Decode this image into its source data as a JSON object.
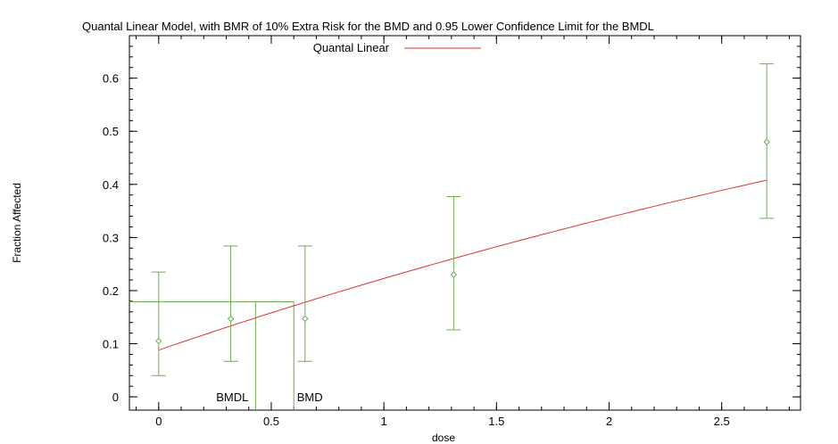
{
  "chart_data": {
    "type": "scatter",
    "title": "Quantal Linear Model, with BMR of 10% Extra Risk for the BMD and 0.95 Lower Confidence Limit for the BMDL",
    "xlabel": "dose",
    "ylabel": "Fraction Affected",
    "xlim": [
      -0.13,
      2.85
    ],
    "ylim": [
      -0.025,
      0.68
    ],
    "xticks": [
      0,
      0.5,
      1,
      1.5,
      2,
      2.5
    ],
    "yticks": [
      0,
      0.1,
      0.2,
      0.3,
      0.4,
      0.5,
      0.6
    ],
    "legend": {
      "label": "Quantal Linear",
      "position": "top"
    },
    "colors": {
      "model": "#e03030",
      "data": "#6ab04c",
      "axes": "#000000"
    },
    "observed": [
      {
        "x": 0,
        "y": 0.105,
        "lower": 0.04,
        "upper": 0.235
      },
      {
        "x": 0.32,
        "y": 0.147,
        "lower": 0.067,
        "upper": 0.284
      },
      {
        "x": 0.65,
        "y": 0.147,
        "lower": 0.067,
        "upper": 0.284
      },
      {
        "x": 1.31,
        "y": 0.23,
        "lower": 0.126,
        "upper": 0.377
      },
      {
        "x": 2.7,
        "y": 0.48,
        "lower": 0.336,
        "upper": 0.627
      }
    ],
    "model": {
      "name": "Quantal Linear",
      "background": 0.088,
      "slope": 0.16,
      "x_range": [
        0,
        2.7
      ]
    },
    "bmr_level": 0.179,
    "bmd": 0.6,
    "bmdl": 0.43,
    "bmd_label": "BMD",
    "bmdl_label": "BMDL"
  }
}
